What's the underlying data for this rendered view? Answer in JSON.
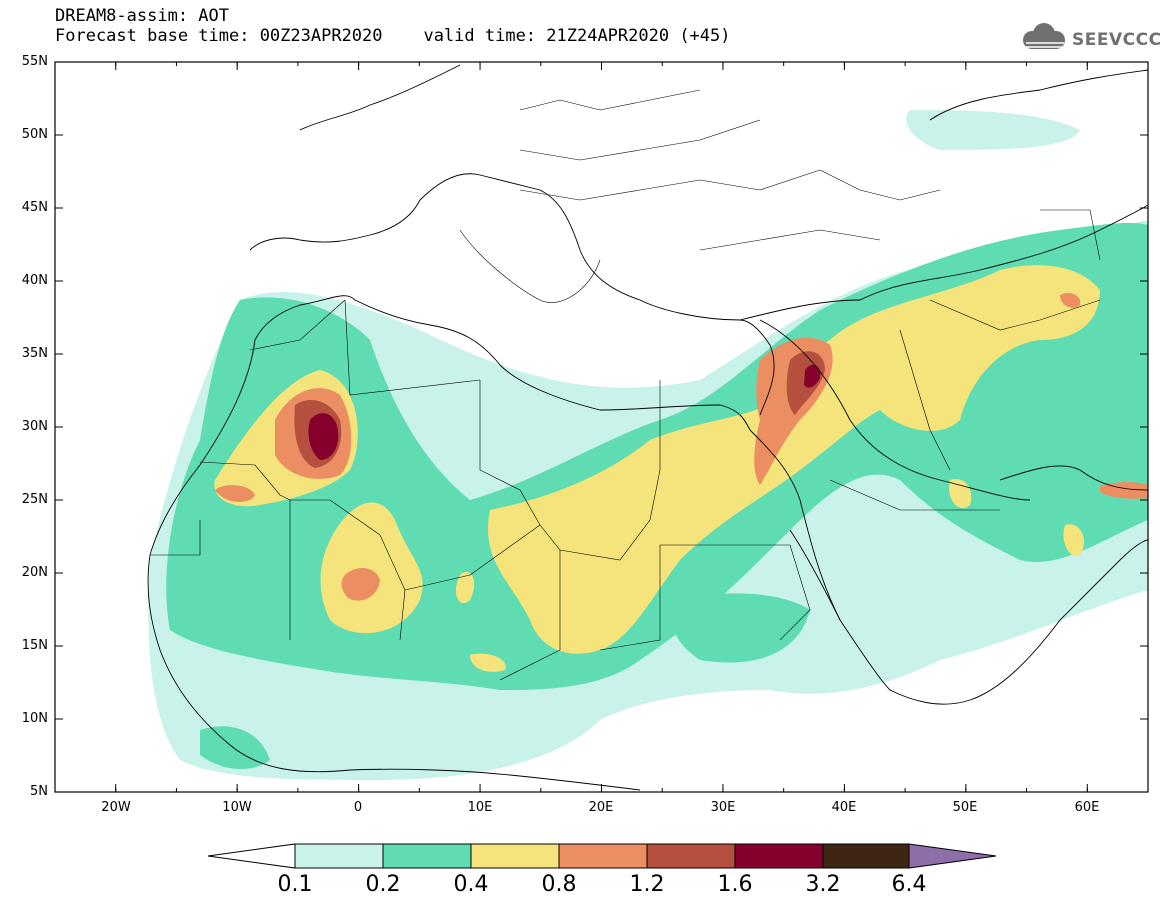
{
  "title": {
    "line1": "DREAM8-assim: AOT",
    "line2": "Forecast base time: 00Z23APR2020    valid time: 21Z24APR2020 (+45)"
  },
  "logo": {
    "text": "SEEVCCC",
    "icon": "cloud-icon"
  },
  "axes": {
    "lat_labels": [
      "55N",
      "50N",
      "45N",
      "40N",
      "35N",
      "30N",
      "25N",
      "20N",
      "15N",
      "10N",
      "5N"
    ],
    "lon_labels": [
      "20W",
      "10W",
      "0",
      "10E",
      "20E",
      "30E",
      "40E",
      "50E",
      "60E"
    ],
    "lat_range": [
      5,
      55
    ],
    "lon_range": [
      -25,
      65
    ]
  },
  "colorbar": {
    "levels": [
      "0.1",
      "0.2",
      "0.4",
      "0.8",
      "1.2",
      "1.6",
      "3.2",
      "6.4"
    ],
    "colors": [
      "#ffffff",
      "#c9f2ea",
      "#5fdcb1",
      "#f5e47c",
      "#eb8e62",
      "#b5503e",
      "#86002e",
      "#3d2713",
      "#8e6ea8"
    ]
  },
  "chart_data": {
    "type": "heatmap",
    "title": "DREAM8-assim: AOT",
    "subtitle": "Forecast base time: 00Z23APR2020    valid time: 21Z24APR2020 (+45)",
    "xlabel": "",
    "ylabel": "",
    "xlim": [
      -25,
      65
    ],
    "ylim": [
      5,
      55
    ],
    "variable": "AOT",
    "maxima": [
      {
        "lon": -3,
        "lat": 29.5,
        "value_range": "1.6-3.2"
      },
      {
        "lon": 37,
        "lat": 33.5,
        "value_range": "1.6-3.2"
      },
      {
        "lon": -1,
        "lat": 20.5,
        "value_range": "0.8-1.2"
      },
      {
        "lon": 55.5,
        "lat": 38.5,
        "value_range": "0.8-1.2"
      },
      {
        "lon": 63,
        "lat": 25.5,
        "value_range": "0.8-1.2"
      }
    ]
  }
}
